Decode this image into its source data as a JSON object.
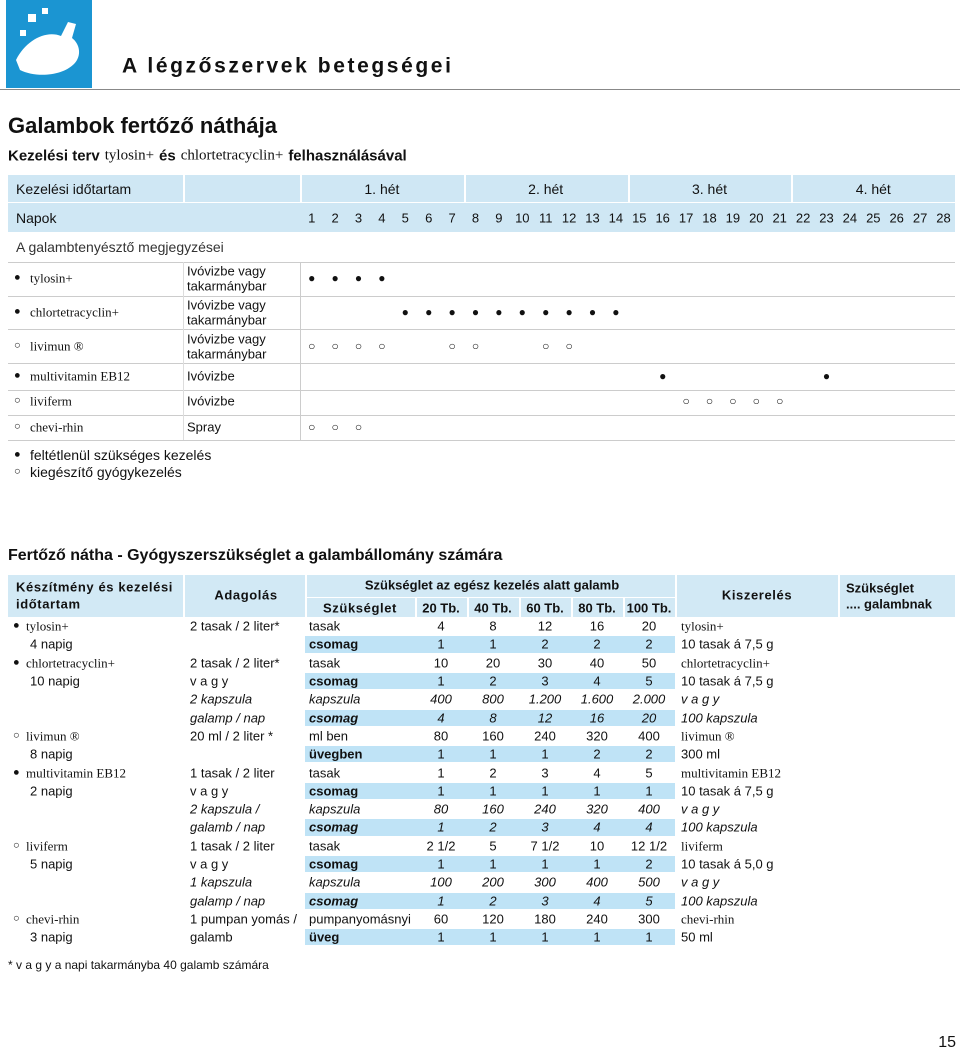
{
  "header": {
    "title": "A légzőszervek betegségei",
    "page_number": "15"
  },
  "section": {
    "title": "Galambok fertőző náthája",
    "subtitle": [
      "Kezelési terv",
      "tylosin+",
      "és",
      "chlortetracyclin+",
      "felhasználásával"
    ]
  },
  "schedule": {
    "duration_label": "Kezelési időtartam",
    "weeks": [
      "1. hét",
      "2. hét",
      "3. hét",
      "4. hét"
    ],
    "days_label": "Napok",
    "days": [
      1,
      2,
      3,
      4,
      5,
      6,
      7,
      8,
      9,
      10,
      11,
      12,
      13,
      14,
      15,
      16,
      17,
      18,
      19,
      20,
      21,
      22,
      23,
      24,
      25,
      26,
      27,
      28
    ],
    "notes_label": "A galambtenyésztő megjegyzései",
    "rows": [
      {
        "bullet": "●",
        "name": "tylosin+",
        "admin": [
          "Ivóvizbe vagy",
          "takarmánybar"
        ],
        "marks": [
          "●",
          "●",
          "●",
          "●",
          null,
          null,
          null,
          null,
          null,
          null,
          null,
          null,
          null,
          null,
          null,
          null,
          null,
          null,
          null,
          null,
          null,
          null,
          null,
          null,
          null,
          null,
          null,
          null
        ]
      },
      {
        "bullet": "●",
        "name": "chlortetracyclin+",
        "admin": [
          "Ivóvizbe vagy",
          "takarmánybar"
        ],
        "marks": [
          null,
          null,
          null,
          null,
          "●",
          "●",
          "●",
          "●",
          "●",
          "●",
          "●",
          "●",
          "●",
          "●",
          null,
          null,
          null,
          null,
          null,
          null,
          null,
          null,
          null,
          null,
          null,
          null,
          null,
          null
        ]
      },
      {
        "bullet": "○",
        "name": "livimun ®",
        "admin": [
          "Ivóvizbe vagy",
          "takarmánybar"
        ],
        "marks": [
          "○",
          "○",
          "○",
          "○",
          null,
          null,
          "○",
          "○",
          null,
          null,
          "○",
          "○",
          null,
          null,
          null,
          null,
          null,
          null,
          null,
          null,
          null,
          null,
          null,
          null,
          null,
          null,
          null,
          null
        ]
      },
      {
        "bullet": "●",
        "name": "multivitamin EB12",
        "admin": [
          "Ivóvizbe"
        ],
        "marks": [
          null,
          null,
          null,
          null,
          null,
          null,
          null,
          null,
          null,
          null,
          null,
          null,
          null,
          null,
          null,
          "●",
          null,
          null,
          null,
          null,
          null,
          null,
          "●",
          null,
          null,
          null,
          null,
          null
        ]
      },
      {
        "bullet": "○",
        "name": "liviferm",
        "admin": [
          "Ivóvizbe"
        ],
        "marks": [
          null,
          null,
          null,
          null,
          null,
          null,
          null,
          null,
          null,
          null,
          null,
          null,
          null,
          null,
          null,
          null,
          "○",
          "○",
          "○",
          "○",
          "○",
          null,
          null,
          null,
          null,
          null,
          null,
          null
        ]
      },
      {
        "bullet": "○",
        "name": "chevi-rhin",
        "admin": [
          "Spray"
        ],
        "marks": [
          "○",
          "○",
          "○",
          null,
          null,
          null,
          null,
          null,
          null,
          null,
          null,
          null,
          null,
          null,
          null,
          null,
          null,
          null,
          null,
          null,
          null,
          null,
          null,
          null,
          null,
          null,
          null,
          null
        ]
      }
    ]
  },
  "legend": [
    {
      "symbol": "●",
      "text": "feltétlenül szükséges kezelés"
    },
    {
      "symbol": "○",
      "text": "kiegészítő gyógykezelés"
    }
  ],
  "requirements": {
    "title": "Fertőző nátha - Gyógyszerszükséglet a galambállomány számára",
    "headers": {
      "prep": [
        "Készítmény és kezelési",
        "időtartam"
      ],
      "dose": "Adagolás",
      "group": "Szükséglet az egész kezelés alatt galamb",
      "unit": "Szükséglet",
      "flocks": [
        "20 Tb.",
        "40 Tb.",
        "60 Tb.",
        "80 Tb.",
        "100 Tb."
      ],
      "package": "Kiszerelés",
      "per": [
        "Szükséglet",
        ".... galambnak"
      ]
    },
    "rows": [
      {
        "bullet": "●",
        "prep": "tylosin+",
        "dose": "2 tasak / 2 liter*",
        "unit": "tasak",
        "values": [
          "4",
          "8",
          "12",
          "16",
          "20"
        ],
        "package": "tylosin+"
      },
      {
        "prep": "4 napig",
        "unit": "csomag",
        "values": [
          "1",
          "1",
          "2",
          "2",
          "2"
        ],
        "package": "10 tasak á 7,5 g",
        "shaded": true
      },
      {
        "bullet": "●",
        "prep": "chlortetracyclin+",
        "dose": "2 tasak / 2 liter*",
        "unit": "tasak",
        "values": [
          "10",
          "20",
          "30",
          "40",
          "50"
        ],
        "package": "chlortetracyclin+"
      },
      {
        "prep": "10 napig",
        "dose": "v a g y",
        "unit": "csomag",
        "values": [
          "1",
          "2",
          "3",
          "4",
          "5"
        ],
        "package": "10 tasak á 7,5 g",
        "shaded": true
      },
      {
        "dose": "2 kapszula",
        "unit": "kapszula",
        "values": [
          "400",
          "800",
          "1.200",
          "1.600",
          "2.000"
        ],
        "package": "v a g y",
        "italic": true
      },
      {
        "dose": "galamp / nap",
        "unit": "csomag",
        "values": [
          "4",
          "8",
          "12",
          "16",
          "20"
        ],
        "package": "100 kapszula",
        "italic": true,
        "shaded": true
      },
      {
        "bullet": "○",
        "prep": "livimun ®",
        "dose": "20 ml / 2 liter *",
        "unit": "ml ben",
        "values": [
          "80",
          "160",
          "240",
          "320",
          "400"
        ],
        "package": "livimun ®"
      },
      {
        "prep": "8 napig",
        "unit": "üvegben",
        "values": [
          "1",
          "1",
          "1",
          "2",
          "2"
        ],
        "package": "300 ml",
        "shaded": true
      },
      {
        "bullet": "●",
        "prep": "multivitamin EB12",
        "dose": "1 tasak / 2 liter",
        "unit": "tasak",
        "values": [
          "1",
          "2",
          "3",
          "4",
          "5"
        ],
        "package": "multivitamin EB12"
      },
      {
        "prep": "2 napig",
        "dose": "v a g y",
        "unit": "csomag",
        "values": [
          "1",
          "1",
          "1",
          "1",
          "1"
        ],
        "package": "10 tasak á 7,5 g",
        "shaded": true
      },
      {
        "dose": "2 kapszula /",
        "unit": "kapszula",
        "values": [
          "80",
          "160",
          "240",
          "320",
          "400"
        ],
        "package": "v a g y",
        "italic": true
      },
      {
        "dose": "galamb / nap",
        "unit": "csomag",
        "values": [
          "1",
          "2",
          "3",
          "4",
          "4"
        ],
        "package": "100 kapszula",
        "italic": true,
        "shaded": true
      },
      {
        "bullet": "○",
        "prep": "liviferm",
        "dose": "1 tasak / 2 liter",
        "unit": "tasak",
        "values": [
          "2 1/2",
          "5",
          "7 1/2",
          "10",
          "12 1/2"
        ],
        "package": "liviferm"
      },
      {
        "prep": "5 napig",
        "dose": "v a g y",
        "unit": "csomag",
        "values": [
          "1",
          "1",
          "1",
          "1",
          "2"
        ],
        "package": "10 tasak á 5,0 g",
        "shaded": true
      },
      {
        "dose": "1 kapszula",
        "unit": "kapszula",
        "values": [
          "100",
          "200",
          "300",
          "400",
          "500"
        ],
        "package": "v a g y",
        "italic": true
      },
      {
        "dose": "galamp / nap",
        "unit": "csomag",
        "values": [
          "1",
          "2",
          "3",
          "4",
          "5"
        ],
        "package": "100 kapszula",
        "italic": true,
        "shaded": true
      },
      {
        "bullet": "○",
        "prep": "chevi-rhin",
        "dose": "1 pumpan yomás /",
        "unit": "pumpanyomásnyi",
        "values": [
          "60",
          "120",
          "180",
          "240",
          "300"
        ],
        "package": "chevi-rhin"
      },
      {
        "prep": "3 napig",
        "dose": "galamb",
        "unit": "üveg",
        "values": [
          "1",
          "1",
          "1",
          "1",
          "1"
        ],
        "package": "50 ml",
        "shaded": true
      }
    ]
  },
  "footnote": "* v a g y a napi takarmányba 40 galamb számára"
}
